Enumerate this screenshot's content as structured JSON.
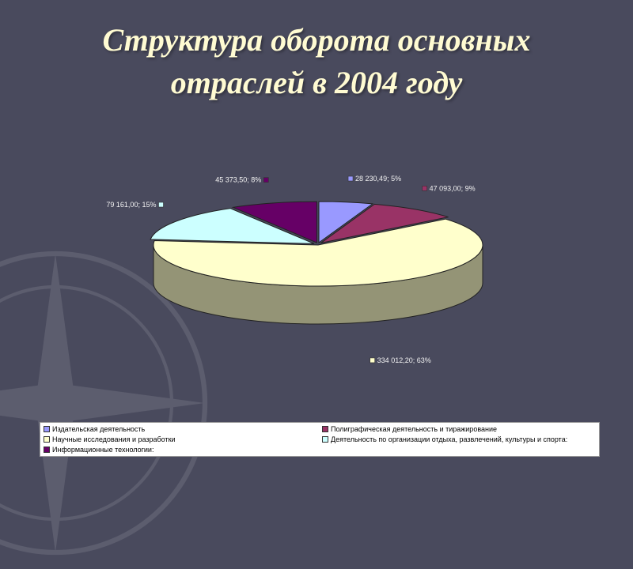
{
  "title": {
    "line1": "Структура оборота основных",
    "line2": "отраслей в 2004 году"
  },
  "chart_data": {
    "type": "pie",
    "title": "",
    "style": "3d-exploded",
    "legend_position": "bottom",
    "slices": [
      {
        "name": "Издательская деятельность",
        "value": 28230.49,
        "percent": 5,
        "label": "28 230,49; 5%",
        "color": "#9999ff"
      },
      {
        "name": "Полиграфическая деятельность и тиражирование",
        "value": 47093.0,
        "percent": 9,
        "label": "47 093,00; 9%",
        "color": "#993366"
      },
      {
        "name": "Научные исследования и разработки",
        "value": 334012.2,
        "percent": 63,
        "label": "334 012,20; 63%",
        "color": "#ffffcc"
      },
      {
        "name": "Деятельность по организации отдыха, развлечений, культуры и спорта:",
        "value": 79161.0,
        "percent": 15,
        "label": "79 161,00; 15%",
        "color": "#ccffff"
      },
      {
        "name": "Информационные технологии:",
        "value": 45373.5,
        "percent": 8,
        "label": "45 373,50; 8%",
        "color": "#660066"
      }
    ]
  }
}
